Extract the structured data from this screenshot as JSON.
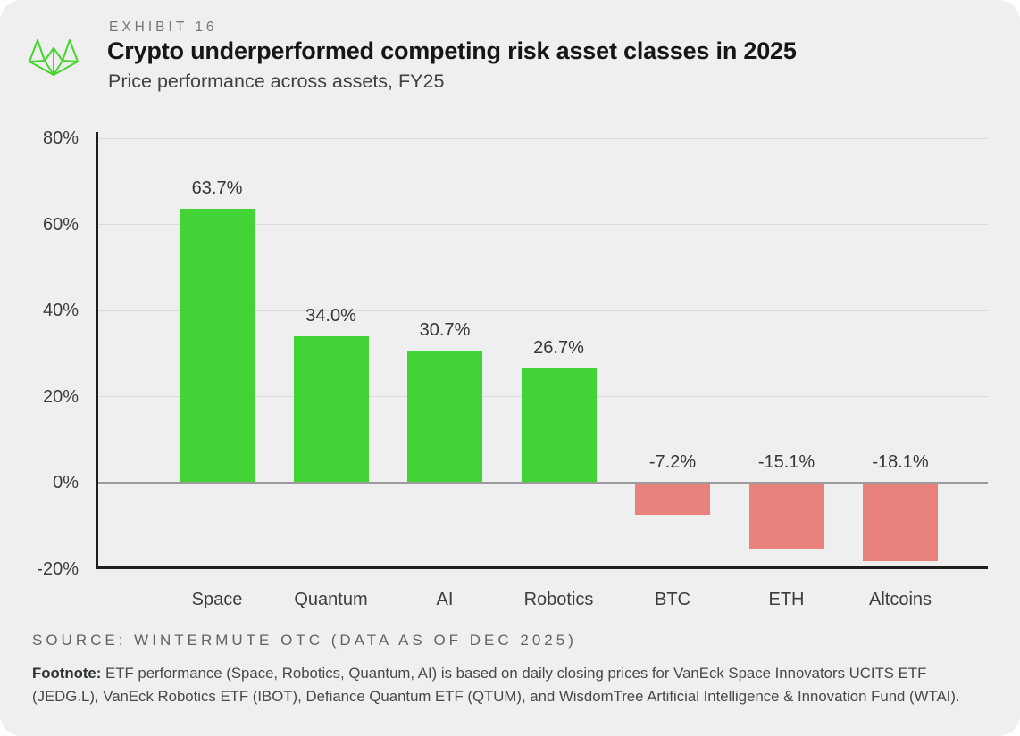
{
  "header": {
    "exhibit_label": "EXHIBIT 16",
    "logo_color": "#44d62c"
  },
  "chart_data": {
    "type": "bar",
    "title": "Crypto underperformed competing risk asset classes in 2025",
    "subtitle": "Price performance across assets, FY25",
    "categories": [
      "Space",
      "Quantum",
      "AI",
      "Robotics",
      "BTC",
      "ETH",
      "Altcoins"
    ],
    "values": [
      63.7,
      34.0,
      30.7,
      26.7,
      -7.2,
      -15.1,
      -18.1
    ],
    "value_labels": [
      "63.7%",
      "34.0%",
      "30.7%",
      "26.7%",
      "-7.2%",
      "-15.1%",
      "-18.1%"
    ],
    "xlabel": "",
    "ylabel": "",
    "ylim": [
      -20,
      81.5
    ],
    "yticks": [
      {
        "value": 80,
        "label": "80%"
      },
      {
        "value": 60,
        "label": "60%"
      },
      {
        "value": 40,
        "label": "40%"
      },
      {
        "value": 20,
        "label": "20%"
      },
      {
        "value": 0,
        "label": "0%"
      },
      {
        "value": -20,
        "label": "-20%"
      }
    ],
    "grid": true,
    "legend_position": "none",
    "positive_color": "#42d336",
    "negative_color": "#e8807c",
    "background_color": "#efefef"
  },
  "footer": {
    "source": "SOURCE: WINTERMUTE OTC (DATA AS OF DEC 2025)",
    "footnote_label": "Footnote:",
    "footnote_text": "ETF performance (Space, Robotics, Quantum, AI) is based on daily closing prices for VanEck Space Innovators UCITS ETF (JEDG.L), VanEck Robotics ETF (IBOT), Defiance Quantum ETF (QTUM), and WisdomTree Artificial Intelligence & Innovation Fund (WTAI)."
  }
}
